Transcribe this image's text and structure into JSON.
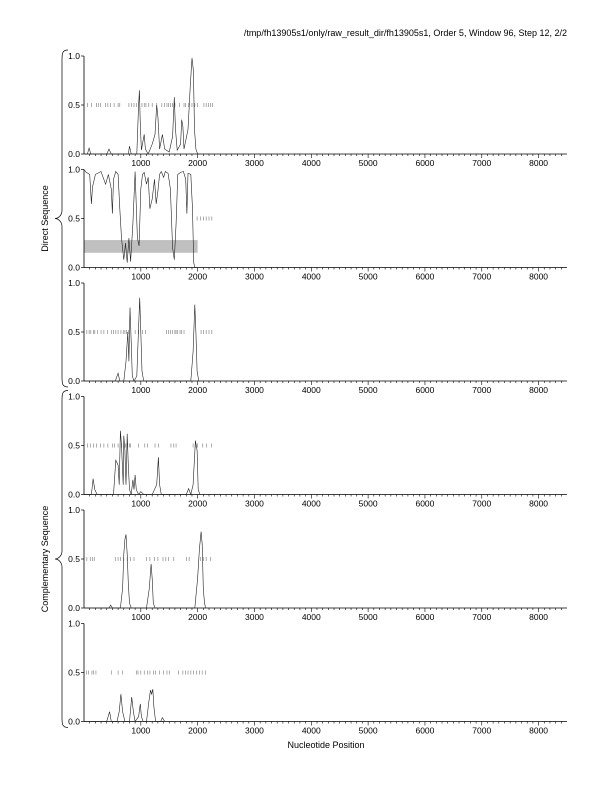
{
  "header": {
    "title": "/tmp/fh13905s1/only/raw_result_dir/fh13905s1, Order 5, Window 96, Step 12, 2/2"
  },
  "xlabel": "Nucleotide Position",
  "groups": [
    {
      "label": "Direct Sequence",
      "panels": [
        0,
        1,
        2
      ]
    },
    {
      "label": "Complementary Sequence",
      "panels": [
        3,
        4,
        5
      ]
    }
  ],
  "chart_data": {
    "type": "line",
    "xlim": [
      0,
      8500
    ],
    "ylim": [
      0,
      1
    ],
    "xticks": [
      "1000",
      "2000",
      "3000",
      "4000",
      "5000",
      "6000",
      "7000",
      "8000"
    ],
    "xtick_values": [
      1000,
      2000,
      3000,
      4000,
      5000,
      6000,
      7000,
      8000
    ],
    "yticks": [
      "0.0",
      "0.5",
      "1.0"
    ],
    "ytick_values": [
      0,
      0.5,
      1
    ],
    "panels": [
      {
        "series": [
          [
            0,
            0
          ],
          [
            60,
            0
          ],
          [
            90,
            0.06
          ],
          [
            120,
            0
          ],
          [
            400,
            0
          ],
          [
            440,
            0.05
          ],
          [
            480,
            0
          ],
          [
            780,
            0
          ],
          [
            800,
            0.08
          ],
          [
            830,
            0
          ],
          [
            930,
            0
          ],
          [
            960,
            0.5
          ],
          [
            975,
            0.65
          ],
          [
            990,
            0.3
          ],
          [
            1010,
            0.04
          ],
          [
            1060,
            0.2
          ],
          [
            1080,
            0.05
          ],
          [
            1130,
            0
          ],
          [
            1200,
            0.1
          ],
          [
            1250,
            0.2
          ],
          [
            1280,
            0.5
          ],
          [
            1300,
            0.38
          ],
          [
            1330,
            0.05
          ],
          [
            1380,
            0.2
          ],
          [
            1420,
            0.05
          ],
          [
            1500,
            0.02
          ],
          [
            1560,
            0.18
          ],
          [
            1590,
            0.58
          ],
          [
            1610,
            0.25
          ],
          [
            1640,
            0.04
          ],
          [
            1700,
            0.1
          ],
          [
            1720,
            0.35
          ],
          [
            1740,
            0.28
          ],
          [
            1760,
            0.05
          ],
          [
            1830,
            0.25
          ],
          [
            1870,
            0.7
          ],
          [
            1900,
            0.98
          ],
          [
            1925,
            0.85
          ],
          [
            1945,
            0.25
          ],
          [
            1970,
            0.05
          ],
          [
            2000,
            0
          ],
          [
            2050,
            0
          ]
        ],
        "ticks_y": 0.5,
        "ticks_x": [
          60,
          130,
          220,
          250,
          290,
          380,
          420,
          470,
          530,
          600,
          630,
          790,
          840,
          880,
          920,
          1020,
          1060,
          1090,
          1140,
          1200,
          1280,
          1370,
          1420,
          1460,
          1490,
          1520,
          1560,
          1600,
          1680,
          1760,
          1790,
          1840,
          1900,
          1950,
          2000,
          2110,
          2150,
          2190,
          2230,
          2260
        ]
      },
      {
        "series": [
          [
            0,
            1
          ],
          [
            40,
            0.97
          ],
          [
            100,
            0.95
          ],
          [
            130,
            0.65
          ],
          [
            150,
            0.82
          ],
          [
            200,
            0.95
          ],
          [
            300,
            0.98
          ],
          [
            380,
            0.85
          ],
          [
            430,
            0.95
          ],
          [
            480,
            0.8
          ],
          [
            500,
            0.55
          ],
          [
            520,
            0.9
          ],
          [
            560,
            0.98
          ],
          [
            600,
            0.95
          ],
          [
            630,
            0.6
          ],
          [
            660,
            0.3
          ],
          [
            700,
            0.08
          ],
          [
            730,
            0.25
          ],
          [
            760,
            0.05
          ],
          [
            790,
            0.3
          ],
          [
            820,
            0.06
          ],
          [
            860,
            0.45
          ],
          [
            900,
            0.98
          ],
          [
            940,
            0.3
          ],
          [
            970,
            0.22
          ],
          [
            1000,
            0.8
          ],
          [
            1030,
            0.95
          ],
          [
            1060,
            0.97
          ],
          [
            1100,
            0.85
          ],
          [
            1130,
            0.92
          ],
          [
            1160,
            0.6
          ],
          [
            1200,
            0.7
          ],
          [
            1240,
            0.9
          ],
          [
            1270,
            0.65
          ],
          [
            1300,
            0.78
          ],
          [
            1330,
            0.95
          ],
          [
            1360,
            0.98
          ],
          [
            1400,
            0.92
          ],
          [
            1430,
            0.98
          ],
          [
            1480,
            0.96
          ],
          [
            1520,
            0.8
          ],
          [
            1560,
            0.2
          ],
          [
            1590,
            0.08
          ],
          [
            1620,
            0.45
          ],
          [
            1650,
            0.95
          ],
          [
            1700,
            0.97
          ],
          [
            1750,
            0.98
          ],
          [
            1790,
            0.9
          ],
          [
            1810,
            0.55
          ],
          [
            1830,
            0.96
          ],
          [
            1880,
            0.95
          ],
          [
            1910,
            0.6
          ],
          [
            1930,
            0.05
          ],
          [
            1950,
            0
          ],
          [
            1980,
            0
          ]
        ],
        "ticks_y": 0.5,
        "ticks_x": [
          1990,
          2050,
          2100,
          2150,
          2200,
          2250
        ],
        "band": [
          0.15,
          0.28,
          0,
          2000
        ]
      },
      {
        "series": [
          [
            0,
            0
          ],
          [
            550,
            0
          ],
          [
            600,
            0.08
          ],
          [
            630,
            0
          ],
          [
            700,
            0
          ],
          [
            740,
            0.2
          ],
          [
            770,
            0.5
          ],
          [
            790,
            0.2
          ],
          [
            810,
            0.75
          ],
          [
            830,
            0.4
          ],
          [
            850,
            0.05
          ],
          [
            880,
            0
          ],
          [
            930,
            0.05
          ],
          [
            960,
            0.55
          ],
          [
            980,
            0.85
          ],
          [
            1000,
            0.5
          ],
          [
            1020,
            0.1
          ],
          [
            1050,
            0
          ],
          [
            1500,
            0
          ],
          [
            1880,
            0
          ],
          [
            1920,
            0.3
          ],
          [
            1950,
            0.78
          ],
          [
            1970,
            0.5
          ],
          [
            1990,
            0.1
          ],
          [
            2020,
            0
          ],
          [
            2050,
            0
          ]
        ],
        "ticks_y": 0.5,
        "ticks_x": [
          50,
          90,
          120,
          170,
          190,
          240,
          300,
          350,
          410,
          480,
          520,
          560,
          600,
          650,
          690,
          720,
          750,
          780,
          900,
          960,
          1030,
          1080,
          1450,
          1490,
          1520,
          1560,
          1600,
          1620,
          1650,
          1690,
          1720,
          1760,
          2060,
          2100,
          2150,
          2200,
          2250
        ]
      },
      {
        "series": [
          [
            0,
            0
          ],
          [
            130,
            0
          ],
          [
            160,
            0.16
          ],
          [
            190,
            0.05
          ],
          [
            230,
            0
          ],
          [
            520,
            0
          ],
          [
            560,
            0.35
          ],
          [
            600,
            0.3
          ],
          [
            620,
            0.1
          ],
          [
            640,
            0.65
          ],
          [
            660,
            0.5
          ],
          [
            690,
            0.1
          ],
          [
            700,
            0.6
          ],
          [
            720,
            0.45
          ],
          [
            740,
            0.1
          ],
          [
            760,
            0.62
          ],
          [
            780,
            0.3
          ],
          [
            800,
            0.05
          ],
          [
            830,
            0
          ],
          [
            860,
            0.15
          ],
          [
            880,
            0.05
          ],
          [
            900,
            0.2
          ],
          [
            920,
            0.05
          ],
          [
            960,
            0
          ],
          [
            1000,
            0.03
          ],
          [
            1050,
            0
          ],
          [
            1200,
            0
          ],
          [
            1280,
            0.1
          ],
          [
            1310,
            0.38
          ],
          [
            1330,
            0.1
          ],
          [
            1360,
            0
          ],
          [
            1800,
            0
          ],
          [
            1840,
            0.06
          ],
          [
            1880,
            0
          ],
          [
            1920,
            0.1
          ],
          [
            1960,
            0.55
          ],
          [
            1990,
            0.45
          ],
          [
            2010,
            0.05
          ],
          [
            2040,
            0
          ]
        ],
        "ticks_y": 0.5,
        "ticks_x": [
          60,
          110,
          170,
          220,
          290,
          350,
          420,
          500,
          540,
          600,
          660,
          700,
          730,
          770,
          800,
          820,
          960,
          1070,
          1120,
          1250,
          1310,
          1530,
          1580,
          1620,
          1920,
          1960,
          2000,
          2090,
          2160,
          2240
        ]
      },
      {
        "series": [
          [
            0,
            0
          ],
          [
            440,
            0
          ],
          [
            470,
            0.03
          ],
          [
            500,
            0
          ],
          [
            640,
            0
          ],
          [
            680,
            0.2
          ],
          [
            700,
            0.55
          ],
          [
            720,
            0.7
          ],
          [
            740,
            0.75
          ],
          [
            760,
            0.55
          ],
          [
            780,
            0.25
          ],
          [
            800,
            0.05
          ],
          [
            830,
            0
          ],
          [
            1100,
            0
          ],
          [
            1150,
            0.2
          ],
          [
            1180,
            0.45
          ],
          [
            1200,
            0.3
          ],
          [
            1220,
            0.05
          ],
          [
            1250,
            0
          ],
          [
            1500,
            0
          ],
          [
            1950,
            0
          ],
          [
            2000,
            0.3
          ],
          [
            2030,
            0.6
          ],
          [
            2060,
            0.78
          ],
          [
            2080,
            0.65
          ],
          [
            2100,
            0.2
          ],
          [
            2120,
            0.05
          ],
          [
            2140,
            0
          ]
        ],
        "ticks_y": 0.5,
        "ticks_x": [
          50,
          110,
          150,
          180,
          550,
          600,
          640,
          700,
          760,
          820,
          880,
          1100,
          1160,
          1240,
          1300,
          1390,
          1440,
          1490,
          1580,
          1800,
          1850,
          2050,
          2100,
          2150,
          2230
        ]
      },
      {
        "series": [
          [
            0,
            0
          ],
          [
            400,
            0
          ],
          [
            450,
            0.1
          ],
          [
            480,
            0
          ],
          [
            580,
            0
          ],
          [
            620,
            0.1
          ],
          [
            650,
            0.28
          ],
          [
            680,
            0.1
          ],
          [
            720,
            0
          ],
          [
            800,
            0
          ],
          [
            840,
            0.25
          ],
          [
            870,
            0.1
          ],
          [
            900,
            0
          ],
          [
            960,
            0.05
          ],
          [
            990,
            0.18
          ],
          [
            1010,
            0.05
          ],
          [
            1040,
            0
          ],
          [
            1100,
            0
          ],
          [
            1140,
            0.2
          ],
          [
            1170,
            0.32
          ],
          [
            1190,
            0.28
          ],
          [
            1210,
            0.33
          ],
          [
            1230,
            0.15
          ],
          [
            1260,
            0
          ],
          [
            1350,
            0
          ],
          [
            1380,
            0.04
          ],
          [
            1420,
            0
          ]
        ],
        "ticks_y": 0.5,
        "ticks_x": [
          40,
          80,
          140,
          170,
          210,
          480,
          600,
          680,
          920,
          950,
          1000,
          1060,
          1120,
          1160,
          1220,
          1260,
          1330,
          1400,
          1460,
          1500,
          1660,
          1740,
          1790,
          1830,
          1880,
          1930,
          1980,
          2030,
          2080,
          2140
        ]
      }
    ]
  }
}
